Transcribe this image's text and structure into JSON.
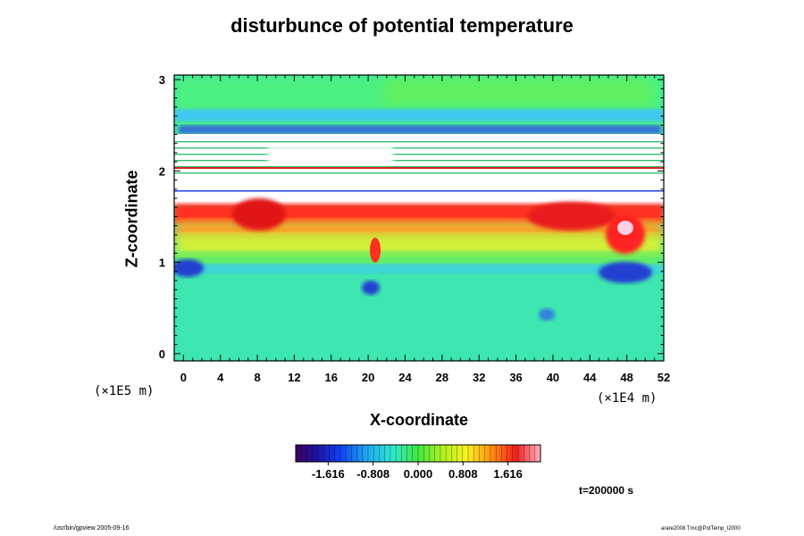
{
  "chart_data": {
    "type": "heatmap",
    "title": "disturbunce of potential temperature",
    "xlabel": "X-coordinate",
    "ylabel": "Z-coordinate",
    "x_unit_label": "(×1E4 m)",
    "y_unit_label": "(×1E5 m)",
    "xlim": [
      -1,
      52
    ],
    "ylim": [
      -0.08,
      3.05
    ],
    "x_ticks": [
      0,
      4,
      8,
      12,
      16,
      20,
      24,
      28,
      32,
      36,
      40,
      44,
      48,
      52
    ],
    "y_ticks": [
      0,
      1,
      2,
      3
    ],
    "colorbar": {
      "range": [
        -2.2,
        2.2
      ],
      "tick_values": [
        -1.616,
        -0.808,
        0.0,
        0.808,
        1.616
      ],
      "tick_labels": [
        "-1.616",
        "-0.808",
        "0.000",
        "0.808",
        "1.616"
      ],
      "colormap": "rainbow (purple-blue-cyan-green-yellow-red-pink)"
    },
    "time_label": "t=200000 s",
    "footer_left": "/usr/bin/gpview 2005-09-16",
    "footer_right": "arare2008 Tmc@PotTemp_t2000"
  },
  "colors": {
    "background_field": "#33e0a0",
    "warm_band": "#ff3020",
    "cold_patch": "#1030d0",
    "saturated_region": "#ffffff"
  }
}
